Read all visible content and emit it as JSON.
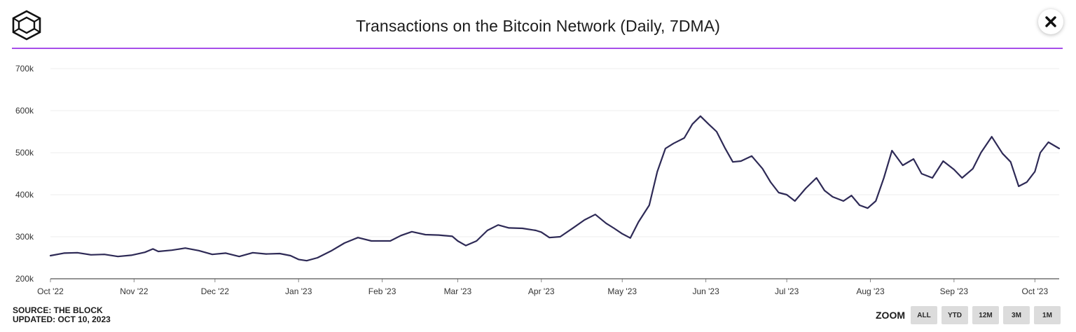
{
  "header": {
    "title": "Transactions on the Bitcoin Network (Daily, 7DMA)"
  },
  "colors": {
    "accent": "#a64dea",
    "line": "#2e2a56",
    "grid": "#ececec",
    "button": "#dcdcdc"
  },
  "footer": {
    "source": "SOURCE: THE BLOCK",
    "updated": "UPDATED: OCT 10, 2023"
  },
  "zoom": {
    "label": "ZOOM",
    "buttons": [
      "ALL",
      "YTD",
      "12M",
      "3M",
      "1M"
    ]
  },
  "chart_data": {
    "type": "line",
    "title": "Transactions on the Bitcoin Network (Daily, 7DMA)",
    "xlabel": "",
    "ylabel": "",
    "ylim": [
      200000,
      700000
    ],
    "y_ticks": [
      {
        "value": 200000,
        "label": "200k"
      },
      {
        "value": 300000,
        "label": "300k"
      },
      {
        "value": 400000,
        "label": "400k"
      },
      {
        "value": 500000,
        "label": "500k"
      },
      {
        "value": 600000,
        "label": "600k"
      },
      {
        "value": 700000,
        "label": "700k"
      }
    ],
    "x_domain": [
      "2022-10-01",
      "2023-10-10"
    ],
    "x_ticks": [
      {
        "date": "2022-10-01",
        "label": "Oct '22"
      },
      {
        "date": "2022-11-01",
        "label": "Nov '22"
      },
      {
        "date": "2022-12-01",
        "label": "Dec '22"
      },
      {
        "date": "2023-01-01",
        "label": "Jan '23"
      },
      {
        "date": "2023-02-01",
        "label": "Feb '23"
      },
      {
        "date": "2023-03-01",
        "label": "Mar '23"
      },
      {
        "date": "2023-04-01",
        "label": "Apr '23"
      },
      {
        "date": "2023-05-01",
        "label": "May '23"
      },
      {
        "date": "2023-06-01",
        "label": "Jun '23"
      },
      {
        "date": "2023-07-01",
        "label": "Jul '23"
      },
      {
        "date": "2023-08-01",
        "label": "Aug '23"
      },
      {
        "date": "2023-09-01",
        "label": "Sep '23"
      },
      {
        "date": "2023-10-01",
        "label": "Oct '23"
      }
    ],
    "grid": true,
    "legend": "none",
    "series": [
      {
        "name": "Transactions (7DMA)",
        "points": [
          [
            "2022-10-01",
            255000
          ],
          [
            "2022-10-06",
            261000
          ],
          [
            "2022-10-11",
            262000
          ],
          [
            "2022-10-16",
            257000
          ],
          [
            "2022-10-21",
            258000
          ],
          [
            "2022-10-26",
            253000
          ],
          [
            "2022-10-31",
            256000
          ],
          [
            "2022-11-05",
            263000
          ],
          [
            "2022-11-08",
            271000
          ],
          [
            "2022-11-10",
            265000
          ],
          [
            "2022-11-15",
            268000
          ],
          [
            "2022-11-20",
            273000
          ],
          [
            "2022-11-25",
            267000
          ],
          [
            "2022-11-30",
            258000
          ],
          [
            "2022-12-05",
            261000
          ],
          [
            "2022-12-10",
            253000
          ],
          [
            "2022-12-15",
            262000
          ],
          [
            "2022-12-20",
            259000
          ],
          [
            "2022-12-25",
            260000
          ],
          [
            "2022-12-29",
            255000
          ],
          [
            "2023-01-01",
            246000
          ],
          [
            "2023-01-04",
            243000
          ],
          [
            "2023-01-08",
            250000
          ],
          [
            "2023-01-13",
            266000
          ],
          [
            "2023-01-18",
            285000
          ],
          [
            "2023-01-23",
            298000
          ],
          [
            "2023-01-28",
            290000
          ],
          [
            "2023-02-01",
            290000
          ],
          [
            "2023-02-04",
            290000
          ],
          [
            "2023-02-08",
            303000
          ],
          [
            "2023-02-12",
            312000
          ],
          [
            "2023-02-17",
            305000
          ],
          [
            "2023-02-22",
            304000
          ],
          [
            "2023-02-27",
            301000
          ],
          [
            "2023-03-01",
            290000
          ],
          [
            "2023-03-04",
            279000
          ],
          [
            "2023-03-08",
            290000
          ],
          [
            "2023-03-12",
            315000
          ],
          [
            "2023-03-16",
            328000
          ],
          [
            "2023-03-20",
            321000
          ],
          [
            "2023-03-25",
            320000
          ],
          [
            "2023-03-30",
            315000
          ],
          [
            "2023-04-01",
            311000
          ],
          [
            "2023-04-04",
            298000
          ],
          [
            "2023-04-08",
            300000
          ],
          [
            "2023-04-13",
            322000
          ],
          [
            "2023-04-17",
            340000
          ],
          [
            "2023-04-21",
            353000
          ],
          [
            "2023-04-25",
            332000
          ],
          [
            "2023-04-28",
            320000
          ],
          [
            "2023-05-01",
            307000
          ],
          [
            "2023-05-04",
            297000
          ],
          [
            "2023-05-07",
            335000
          ],
          [
            "2023-05-11",
            375000
          ],
          [
            "2023-05-14",
            455000
          ],
          [
            "2023-05-17",
            510000
          ],
          [
            "2023-05-20",
            522000
          ],
          [
            "2023-05-24",
            535000
          ],
          [
            "2023-05-27",
            568000
          ],
          [
            "2023-05-30",
            587000
          ],
          [
            "2023-06-02",
            568000
          ],
          [
            "2023-06-05",
            550000
          ],
          [
            "2023-06-08",
            512000
          ],
          [
            "2023-06-11",
            478000
          ],
          [
            "2023-06-14",
            480000
          ],
          [
            "2023-06-18",
            492000
          ],
          [
            "2023-06-22",
            462000
          ],
          [
            "2023-06-25",
            430000
          ],
          [
            "2023-06-28",
            405000
          ],
          [
            "2023-07-01",
            400000
          ],
          [
            "2023-07-04",
            385000
          ],
          [
            "2023-07-08",
            415000
          ],
          [
            "2023-07-12",
            440000
          ],
          [
            "2023-07-15",
            410000
          ],
          [
            "2023-07-18",
            395000
          ],
          [
            "2023-07-22",
            385000
          ],
          [
            "2023-07-25",
            398000
          ],
          [
            "2023-07-28",
            375000
          ],
          [
            "2023-07-31",
            368000
          ],
          [
            "2023-08-03",
            385000
          ],
          [
            "2023-08-06",
            440000
          ],
          [
            "2023-08-09",
            505000
          ],
          [
            "2023-08-13",
            470000
          ],
          [
            "2023-08-17",
            485000
          ],
          [
            "2023-08-20",
            450000
          ],
          [
            "2023-08-24",
            440000
          ],
          [
            "2023-08-28",
            480000
          ],
          [
            "2023-09-01",
            460000
          ],
          [
            "2023-09-04",
            440000
          ],
          [
            "2023-09-08",
            462000
          ],
          [
            "2023-09-11",
            500000
          ],
          [
            "2023-09-15",
            538000
          ],
          [
            "2023-09-19",
            498000
          ],
          [
            "2023-09-22",
            478000
          ],
          [
            "2023-09-25",
            420000
          ],
          [
            "2023-09-28",
            430000
          ],
          [
            "2023-10-01",
            455000
          ],
          [
            "2023-10-03",
            500000
          ],
          [
            "2023-10-06",
            525000
          ],
          [
            "2023-10-10",
            510000
          ]
        ]
      }
    ]
  }
}
